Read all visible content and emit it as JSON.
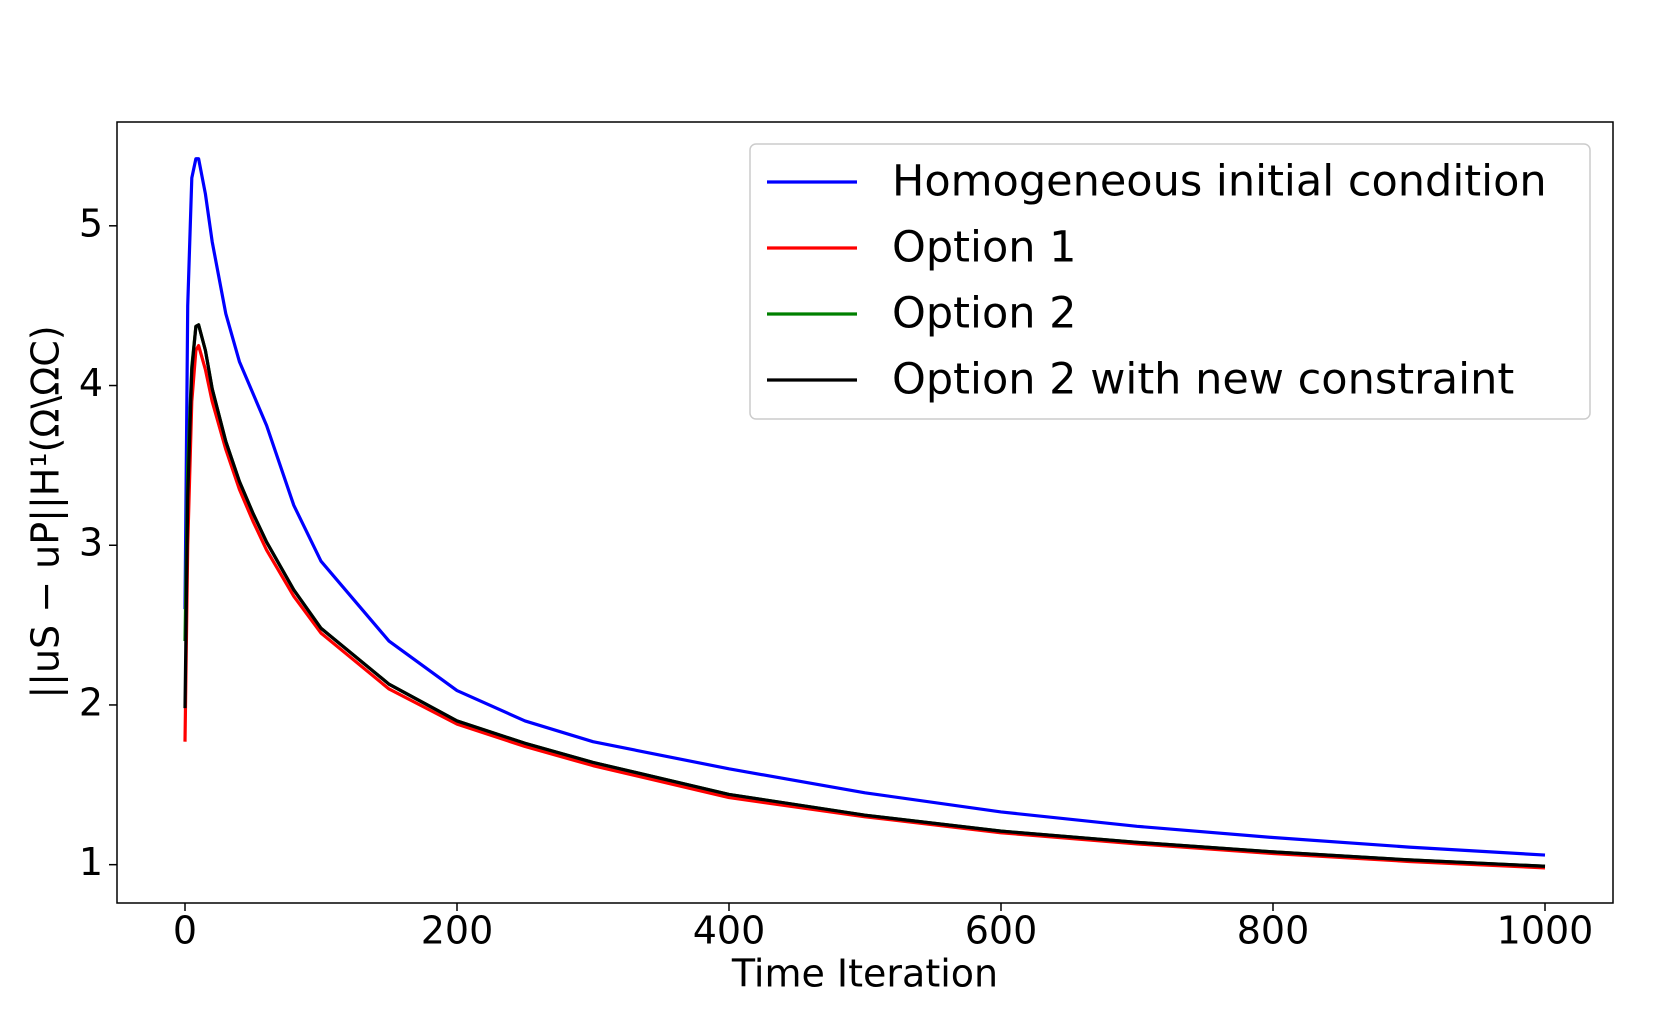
{
  "chart_data": {
    "type": "line",
    "x_label": "Time Iteration",
    "y_label": "||uS − uP||H¹(Ω\\ΩC)",
    "x": [
      0,
      2,
      5,
      8,
      10,
      15,
      20,
      30,
      40,
      50,
      60,
      80,
      100,
      150,
      200,
      250,
      300,
      400,
      500,
      600,
      700,
      800,
      900,
      1000
    ],
    "series": [
      {
        "name": "Homogeneous initial condition",
        "color": "#0000ff",
        "values": [
          2.6,
          4.5,
          5.3,
          5.42,
          5.42,
          5.2,
          4.9,
          4.45,
          4.15,
          3.95,
          3.75,
          3.25,
          2.9,
          2.4,
          2.09,
          1.9,
          1.77,
          1.6,
          1.45,
          1.33,
          1.24,
          1.17,
          1.11,
          1.06
        ]
      },
      {
        "name": "Option 1",
        "color": "#ff0000",
        "values": [
          1.77,
          3.0,
          3.9,
          4.22,
          4.25,
          4.1,
          3.9,
          3.6,
          3.35,
          3.15,
          2.97,
          2.68,
          2.45,
          2.1,
          1.88,
          1.74,
          1.62,
          1.42,
          1.3,
          1.2,
          1.13,
          1.07,
          1.02,
          0.98
        ]
      },
      {
        "name": "Option 2",
        "color": "#008000",
        "values": [
          2.4,
          3.5,
          4.12,
          4.37,
          4.38,
          4.22,
          3.98,
          3.65,
          3.4,
          3.2,
          3.02,
          2.72,
          2.48,
          2.13,
          1.9,
          1.76,
          1.64,
          1.44,
          1.31,
          1.21,
          1.14,
          1.08,
          1.03,
          0.99
        ]
      },
      {
        "name": "Option 2 with new constraint",
        "color": "#000000",
        "values": [
          1.98,
          3.3,
          4.1,
          4.37,
          4.38,
          4.22,
          3.98,
          3.65,
          3.4,
          3.2,
          3.02,
          2.72,
          2.48,
          2.13,
          1.9,
          1.76,
          1.64,
          1.44,
          1.31,
          1.21,
          1.14,
          1.08,
          1.03,
          0.99
        ]
      }
    ],
    "xlim": [
      -50,
      1050
    ],
    "xticks": [
      0,
      200,
      400,
      600,
      800,
      1000
    ],
    "ylim": [
      0.76,
      5.65
    ],
    "yticks": [
      1,
      2,
      3,
      4,
      5
    ],
    "grid": false,
    "legend": "upper right"
  }
}
